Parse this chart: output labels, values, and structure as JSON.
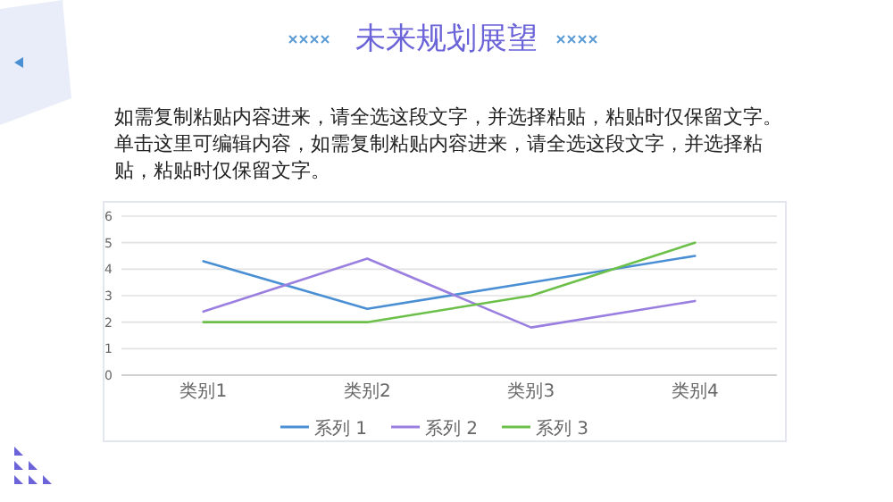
{
  "chart_data": {
    "type": "line",
    "title": "未来规划展望",
    "subtitle": "如需复制粘贴内容进来，请全选这段文字，并选择粘贴，粘贴时仅保留文字。单击这里可编辑内容，如需复制粘贴内容进来，请全选这段文字，并选择粘贴，粘贴时仅保留文字。",
    "categories": [
      "类别1",
      "类别2",
      "类别3",
      "类别4"
    ],
    "series": [
      {
        "name": "系列 1",
        "color": "#4a8fd4",
        "values": [
          4.3,
          2.5,
          3.5,
          4.5
        ]
      },
      {
        "name": "系列 2",
        "color": "#9a7fe0",
        "values": [
          2.4,
          4.4,
          1.8,
          2.8
        ]
      },
      {
        "name": "系列 3",
        "color": "#6cc04a",
        "values": [
          2,
          2,
          3,
          5
        ]
      }
    ],
    "ylim": [
      0,
      6
    ],
    "yticks": [
      0,
      1,
      2,
      3,
      4,
      5,
      6
    ],
    "grid": "y",
    "legend": "bottom",
    "marker": "none",
    "line_style": "solid"
  }
}
